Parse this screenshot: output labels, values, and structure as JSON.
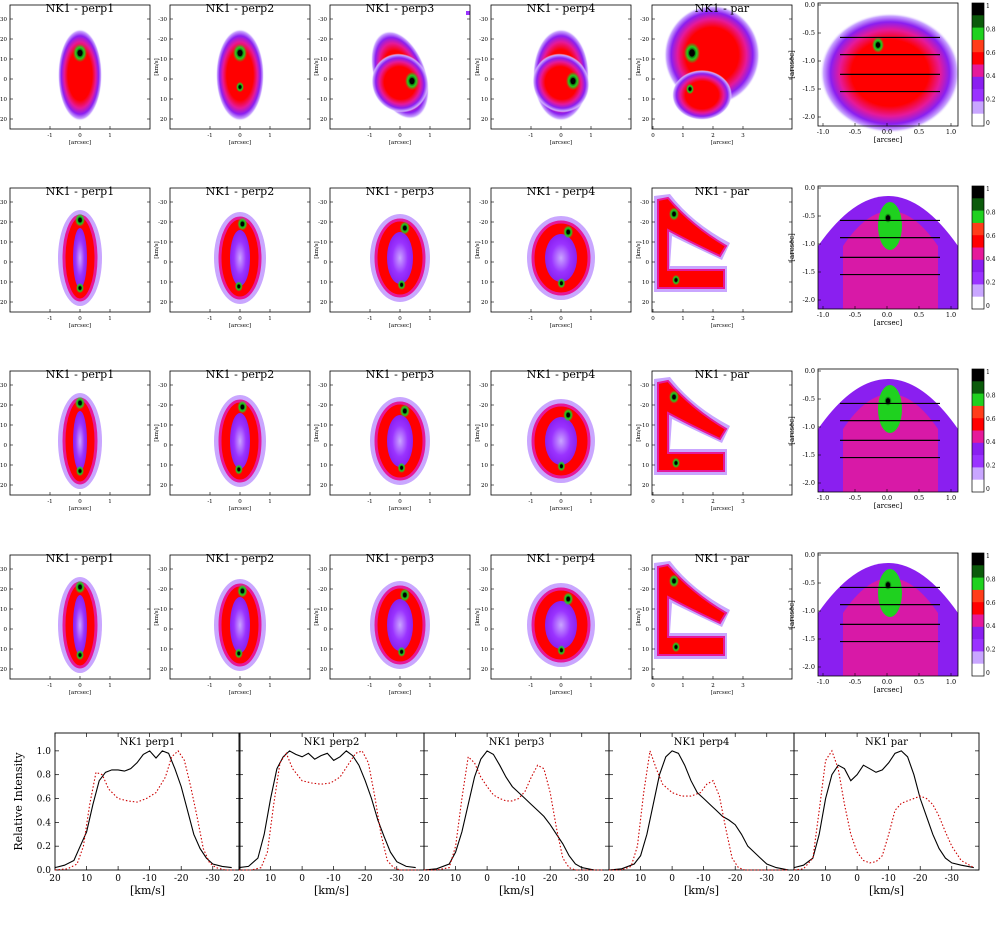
{
  "colors": {
    "ramp": [
      "#ffffff",
      "#c9a6ff",
      "#9a33ff",
      "#8a1ff0",
      "#e5199a",
      "#ff0000",
      "#ff3d1a",
      "#1fd11f",
      "#0b5a0b",
      "#000000"
    ],
    "model_line": "#000000",
    "data_line": "#cc0000"
  },
  "rows": [
    {
      "panels": [
        {
          "title": "NK1 - perp1"
        },
        {
          "title": "NK1 - perp2"
        },
        {
          "title": "NK1 - perp3"
        },
        {
          "title": "NK1 - perp4"
        },
        {
          "title": "NK1 - par"
        }
      ]
    },
    {
      "panels": [
        {
          "title": "NK1 - perp1"
        },
        {
          "title": "NK1 - perp2"
        },
        {
          "title": "NK1 - perp3"
        },
        {
          "title": "NK1 - perp4"
        },
        {
          "title": "NK1 - par"
        }
      ]
    },
    {
      "panels": [
        {
          "title": "NK1 - perp1"
        },
        {
          "title": "NK1 - perp2"
        },
        {
          "title": "NK1 - perp3"
        },
        {
          "title": "NK1 - perp4"
        },
        {
          "title": "NK1 - par"
        }
      ]
    },
    {
      "panels": [
        {
          "title": "NK1 - perp1"
        },
        {
          "title": "NK1 - perp2"
        },
        {
          "title": "NK1 - perp3"
        },
        {
          "title": "NK1 - perp4"
        },
        {
          "title": "NK1 - par"
        }
      ]
    }
  ],
  "pv_axes": {
    "xlabel": "[arcsec]",
    "ylabel_main": "[km/s]",
    "yticks": [
      "-30",
      "-20",
      "-10",
      "0",
      "10",
      "20"
    ],
    "xticks_perp": [
      "-1",
      "0",
      "1"
    ],
    "xticks_par": [
      "0",
      "1",
      "2",
      "3"
    ]
  },
  "map_axes": {
    "xlabel": "[arcsec]",
    "ylabel": "[arcsec]",
    "xticks": [
      "-1.0",
      "-0.5",
      "0.0",
      "0.5",
      "1.0"
    ],
    "yticks": [
      "0.0",
      "-0.5",
      "-1.0",
      "-1.5",
      "-2.0"
    ],
    "colorbar_ticks": [
      "1",
      "0.8",
      "0.6",
      "0.4",
      "0.2",
      "0"
    ]
  },
  "profiles": {
    "ylabel": "Relative Intensity",
    "xlabel": "[km/s]",
    "yticks": [
      "0.0",
      "0.2",
      "0.4",
      "0.6",
      "0.8",
      "1.0"
    ],
    "xticks": [
      "20",
      "10",
      "0",
      "-10",
      "-20",
      "-30"
    ]
  },
  "chart_data": [
    {
      "type": "line",
      "title": "NK1 perp1",
      "xlabel": "[km/s]",
      "ylabel": "Relative Intensity",
      "xlim": [
        20,
        -38
      ],
      "ylim": [
        0,
        1.15
      ],
      "series": [
        {
          "x": [
            20,
            17,
            14,
            12,
            10,
            8,
            6,
            4,
            2,
            0,
            -2,
            -4,
            -6,
            -8,
            -10,
            -12,
            -14,
            -16,
            -18,
            -20,
            -22,
            -24,
            -26,
            -28,
            -30,
            -33,
            -36
          ],
          "y": [
            0.02,
            0.04,
            0.08,
            0.2,
            0.32,
            0.55,
            0.75,
            0.82,
            0.84,
            0.84,
            0.83,
            0.85,
            0.9,
            0.97,
            1.0,
            0.94,
            1.0,
            0.98,
            0.85,
            0.7,
            0.5,
            0.3,
            0.18,
            0.1,
            0.05,
            0.03,
            0.02
          ]
        },
        {
          "x": [
            20,
            16,
            13,
            11,
            9,
            7,
            5,
            3,
            0,
            -3,
            -6,
            -9,
            -12,
            -15,
            -17,
            -19,
            -21,
            -23,
            -25,
            -27,
            -29,
            -31,
            -34,
            -37
          ],
          "y": [
            0.0,
            0.01,
            0.05,
            0.2,
            0.55,
            0.82,
            0.8,
            0.68,
            0.6,
            0.58,
            0.57,
            0.6,
            0.65,
            0.78,
            0.95,
            1.0,
            0.92,
            0.7,
            0.45,
            0.18,
            0.06,
            0.02,
            0.0,
            0.0
          ]
        }
      ]
    },
    {
      "type": "line",
      "title": "NK1 perp2",
      "xlabel": "[km/s]",
      "ylabel": "Relative Intensity",
      "xlim": [
        20,
        -38
      ],
      "ylim": [
        0,
        1.15
      ],
      "series": [
        {
          "x": [
            20,
            17,
            14,
            12,
            10,
            8,
            6,
            4,
            2,
            0,
            -2,
            -4,
            -6,
            -8,
            -10,
            -12,
            -14,
            -16,
            -18,
            -20,
            -22,
            -24,
            -26,
            -28,
            -30,
            -33,
            -36
          ],
          "y": [
            0.02,
            0.03,
            0.1,
            0.3,
            0.6,
            0.85,
            0.95,
            1.0,
            0.97,
            0.95,
            0.98,
            0.93,
            0.96,
            0.98,
            0.92,
            0.95,
            1.0,
            0.96,
            0.88,
            0.75,
            0.6,
            0.42,
            0.28,
            0.15,
            0.07,
            0.03,
            0.02
          ]
        },
        {
          "x": [
            20,
            16,
            13,
            11,
            9,
            7,
            5,
            3,
            0,
            -3,
            -6,
            -9,
            -12,
            -15,
            -17,
            -19,
            -21,
            -23,
            -25,
            -27,
            -29,
            -31,
            -34,
            -37
          ],
          "y": [
            0.0,
            0.0,
            0.02,
            0.15,
            0.55,
            0.9,
            0.98,
            0.85,
            0.75,
            0.73,
            0.72,
            0.73,
            0.78,
            0.9,
            0.98,
            1.0,
            0.9,
            0.62,
            0.3,
            0.08,
            0.02,
            0.0,
            0.0,
            0.0
          ]
        }
      ]
    },
    {
      "type": "line",
      "title": "NK1 perp3",
      "xlabel": "[km/s]",
      "ylabel": "Relative Intensity",
      "xlim": [
        20,
        -38
      ],
      "ylim": [
        0,
        1.15
      ],
      "series": [
        {
          "x": [
            20,
            16,
            12,
            10,
            8,
            6,
            4,
            2,
            0,
            -2,
            -4,
            -6,
            -8,
            -10,
            -12,
            -14,
            -16,
            -18,
            -20,
            -22,
            -24,
            -26,
            -28,
            -30,
            -34,
            -37
          ],
          "y": [
            0.0,
            0.01,
            0.05,
            0.15,
            0.32,
            0.55,
            0.78,
            0.93,
            1.0,
            0.97,
            0.88,
            0.78,
            0.7,
            0.65,
            0.6,
            0.55,
            0.5,
            0.45,
            0.38,
            0.3,
            0.22,
            0.12,
            0.05,
            0.02,
            0.0,
            0.0
          ]
        },
        {
          "x": [
            20,
            16,
            12,
            10,
            8,
            6,
            4,
            2,
            0,
            -2,
            -4,
            -6,
            -8,
            -10,
            -12,
            -14,
            -16,
            -18,
            -20,
            -22,
            -24,
            -26,
            -28,
            -30,
            -34,
            -37
          ],
          "y": [
            0.0,
            0.0,
            0.02,
            0.2,
            0.6,
            0.95,
            0.9,
            0.78,
            0.7,
            0.63,
            0.6,
            0.58,
            0.58,
            0.6,
            0.66,
            0.78,
            0.88,
            0.85,
            0.65,
            0.35,
            0.1,
            0.02,
            0.0,
            0.0,
            0.0,
            0.0
          ]
        }
      ]
    },
    {
      "type": "line",
      "title": "NK1 perp4",
      "xlabel": "[km/s]",
      "ylabel": "Relative Intensity",
      "xlim": [
        20,
        -38
      ],
      "ylim": [
        0,
        1.15
      ],
      "series": [
        {
          "x": [
            20,
            16,
            12,
            10,
            8,
            6,
            4,
            2,
            0,
            -2,
            -4,
            -6,
            -8,
            -10,
            -12,
            -14,
            -16,
            -18,
            -20,
            -22,
            -24,
            -26,
            -28,
            -30,
            -33,
            -37
          ],
          "y": [
            0.0,
            0.01,
            0.05,
            0.12,
            0.3,
            0.55,
            0.8,
            0.95,
            1.0,
            0.98,
            0.88,
            0.75,
            0.65,
            0.6,
            0.55,
            0.5,
            0.45,
            0.42,
            0.38,
            0.3,
            0.2,
            0.15,
            0.1,
            0.05,
            0.02,
            0.0
          ]
        },
        {
          "x": [
            20,
            16,
            13,
            11,
            9,
            7,
            5,
            3,
            0,
            -3,
            -6,
            -9,
            -11,
            -13,
            -15,
            -17,
            -19,
            -21,
            -23,
            -25,
            -28,
            -31,
            -34,
            -37
          ],
          "y": [
            0.0,
            0.0,
            0.03,
            0.2,
            0.65,
            1.0,
            0.85,
            0.72,
            0.65,
            0.62,
            0.62,
            0.65,
            0.72,
            0.75,
            0.62,
            0.35,
            0.1,
            0.02,
            0.0,
            0.0,
            0.0,
            0.0,
            0.0,
            0.0
          ]
        }
      ]
    },
    {
      "type": "line",
      "title": "NK1 par",
      "xlabel": "[km/s]",
      "ylabel": "Relative Intensity",
      "xlim": [
        20,
        -38
      ],
      "ylim": [
        0,
        1.15
      ],
      "series": [
        {
          "x": [
            20,
            17,
            14,
            12,
            10,
            8,
            6,
            4,
            2,
            0,
            -2,
            -4,
            -6,
            -8,
            -10,
            -12,
            -14,
            -16,
            -18,
            -20,
            -22,
            -24,
            -26,
            -28,
            -30,
            -33,
            -37
          ],
          "y": [
            0.02,
            0.04,
            0.1,
            0.3,
            0.6,
            0.8,
            0.88,
            0.85,
            0.75,
            0.8,
            0.88,
            0.85,
            0.82,
            0.84,
            0.9,
            0.98,
            1.0,
            0.95,
            0.8,
            0.6,
            0.45,
            0.3,
            0.18,
            0.1,
            0.06,
            0.04,
            0.02
          ]
        },
        {
          "x": [
            20,
            17,
            14,
            12,
            10,
            8,
            6,
            4,
            2,
            0,
            -2,
            -4,
            -6,
            -8,
            -10,
            -12,
            -14,
            -16,
            -18,
            -20,
            -22,
            -24,
            -26,
            -28,
            -30,
            -33,
            -37
          ],
          "y": [
            0.0,
            0.01,
            0.1,
            0.5,
            0.92,
            1.0,
            0.85,
            0.55,
            0.3,
            0.15,
            0.08,
            0.06,
            0.07,
            0.12,
            0.3,
            0.5,
            0.56,
            0.58,
            0.6,
            0.62,
            0.6,
            0.55,
            0.45,
            0.32,
            0.2,
            0.08,
            0.02
          ]
        }
      ]
    }
  ]
}
